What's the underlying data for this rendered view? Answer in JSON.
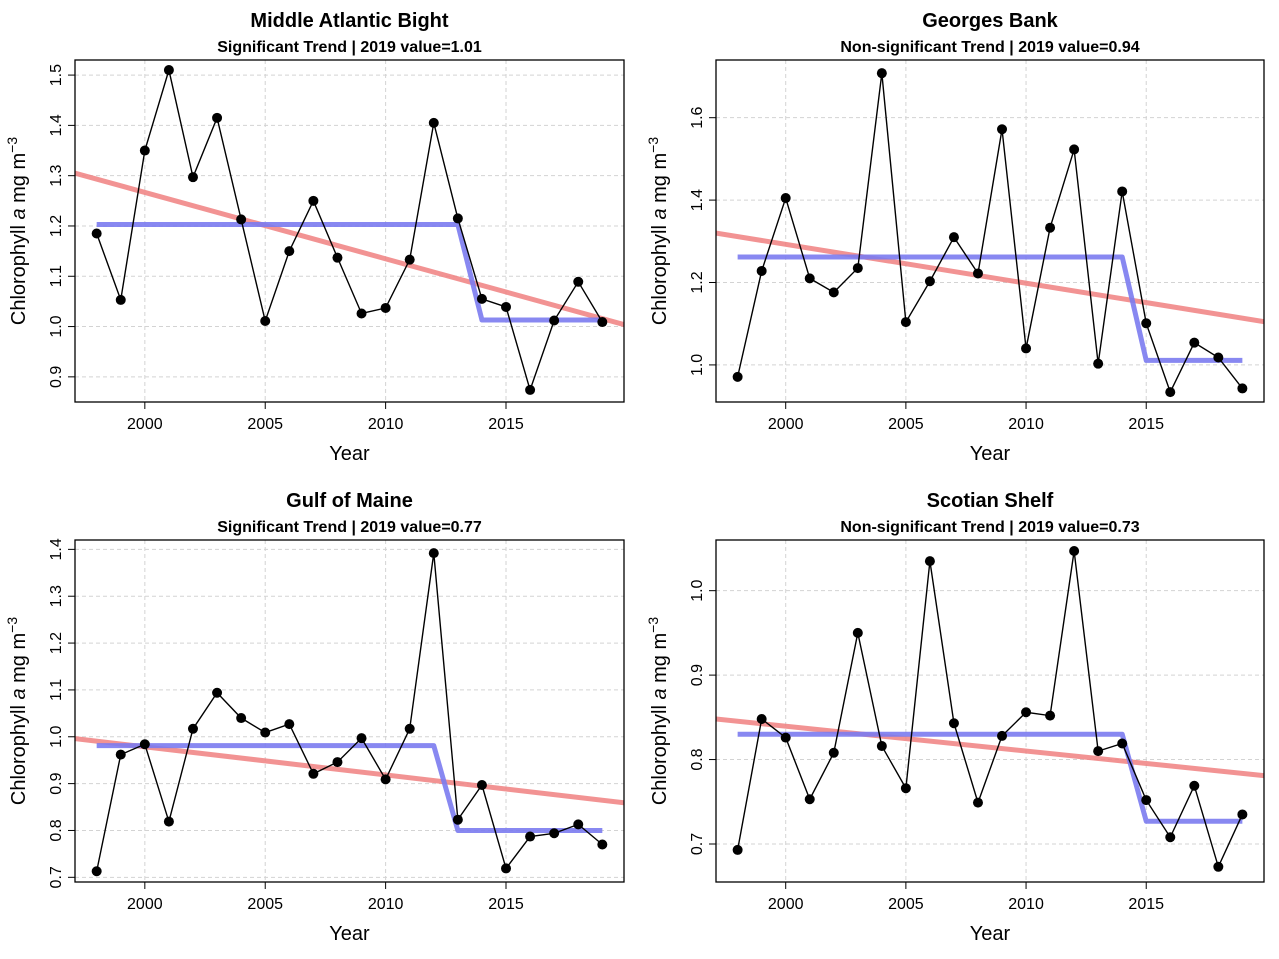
{
  "colors": {
    "series": "#000000",
    "trend": "#F08080",
    "mean_shift": "#7B7BF0",
    "grid": "#D3D3D3"
  },
  "chart_data": [
    {
      "type": "line",
      "title": "Middle Atlantic Bight",
      "subtitle": "Significant Trend | 2019 value=1.01",
      "xlabel": "Year",
      "ylabel": "Chlorophyll a mg m-3",
      "xlim": [
        1997.1,
        2019.9
      ],
      "ylim": [
        0.85,
        1.53
      ],
      "xticks": [
        2000,
        2005,
        2010,
        2015
      ],
      "yticks": [
        0.9,
        1.0,
        1.1,
        1.2,
        1.3,
        1.4,
        1.5
      ],
      "ytick_labels": [
        "0.9",
        "1.0",
        "1.1",
        "1.2",
        "1.3",
        "1.4",
        "1.5"
      ],
      "grid": true,
      "x": [
        1998,
        1999,
        2000,
        2001,
        2002,
        2003,
        2004,
        2005,
        2006,
        2007,
        2008,
        2009,
        2010,
        2011,
        2012,
        2013,
        2014,
        2015,
        2016,
        2017,
        2018,
        2019
      ],
      "values": [
        1.185,
        1.053,
        1.35,
        1.51,
        1.297,
        1.415,
        1.213,
        1.011,
        1.15,
        1.25,
        1.137,
        1.026,
        1.037,
        1.133,
        1.405,
        1.215,
        1.055,
        1.039,
        0.874,
        1.012,
        1.089,
        1.009
      ],
      "trend": {
        "x": [
          1997.1,
          2019.9
        ],
        "y": [
          1.305,
          1.004
        ]
      },
      "mean_shift": {
        "x": [
          1998,
          2013,
          2014,
          2019
        ],
        "y": [
          1.203,
          1.203,
          1.013,
          1.013
        ]
      }
    },
    {
      "type": "line",
      "title": "Georges Bank",
      "subtitle": "Non-significant Trend | 2019 value=0.94",
      "xlabel": "Year",
      "ylabel": "Chlorophyll a mg m-3",
      "xlim": [
        1997.1,
        2019.9
      ],
      "ylim": [
        0.91,
        1.74
      ],
      "xticks": [
        2000,
        2005,
        2010,
        2015
      ],
      "yticks": [
        1.0,
        1.2,
        1.4,
        1.6
      ],
      "ytick_labels": [
        "1.0",
        "1.2",
        "1.4",
        "1.6"
      ],
      "grid": true,
      "x": [
        1998,
        1999,
        2000,
        2001,
        2002,
        2003,
        2004,
        2005,
        2006,
        2007,
        2008,
        2009,
        2010,
        2011,
        2012,
        2013,
        2014,
        2015,
        2016,
        2017,
        2018,
        2019
      ],
      "values": [
        0.971,
        1.228,
        1.405,
        1.21,
        1.176,
        1.235,
        1.708,
        1.104,
        1.203,
        1.31,
        1.222,
        1.572,
        1.04,
        1.333,
        1.523,
        1.003,
        1.421,
        1.101,
        0.934,
        1.054,
        1.018,
        0.943
      ],
      "trend": {
        "x": [
          1997.1,
          2019.9
        ],
        "y": [
          1.32,
          1.105
        ]
      },
      "mean_shift": {
        "x": [
          1998,
          2014,
          2015,
          2019
        ],
        "y": [
          1.262,
          1.262,
          1.011,
          1.011
        ]
      }
    },
    {
      "type": "line",
      "title": "Gulf of Maine",
      "subtitle": "Significant Trend | 2019 value=0.77",
      "xlabel": "Year",
      "ylabel": "Chlorophyll a mg m-3",
      "xlim": [
        1997.1,
        2019.9
      ],
      "ylim": [
        0.69,
        1.42
      ],
      "xticks": [
        2000,
        2005,
        2010,
        2015
      ],
      "yticks": [
        0.7,
        0.8,
        0.9,
        1.0,
        1.1,
        1.2,
        1.3,
        1.4
      ],
      "ytick_labels": [
        "0.7",
        "0.8",
        "0.9",
        "1.0",
        "1.1",
        "1.2",
        "1.3",
        "1.4"
      ],
      "grid": true,
      "x": [
        1998,
        1999,
        2000,
        2001,
        2002,
        2003,
        2004,
        2005,
        2006,
        2007,
        2008,
        2009,
        2010,
        2011,
        2012,
        2013,
        2014,
        2015,
        2016,
        2017,
        2018,
        2019
      ],
      "values": [
        0.713,
        0.962,
        0.984,
        0.819,
        1.017,
        1.094,
        1.04,
        1.009,
        1.027,
        0.921,
        0.946,
        0.997,
        0.909,
        1.017,
        1.392,
        0.823,
        0.897,
        0.719,
        0.787,
        0.794,
        0.813,
        0.77
      ],
      "trend": {
        "x": [
          1997.1,
          2019.9
        ],
        "y": [
          0.996,
          0.859
        ]
      },
      "mean_shift": {
        "x": [
          1998,
          2012,
          2013,
          2019
        ],
        "y": [
          0.981,
          0.981,
          0.8,
          0.8
        ]
      }
    },
    {
      "type": "line",
      "title": "Scotian Shelf",
      "subtitle": "Non-significant Trend | 2019 value=0.73",
      "xlabel": "Year",
      "ylabel": "Chlorophyll a mg m-3",
      "xlim": [
        1997.1,
        2019.9
      ],
      "ylim": [
        0.655,
        1.06
      ],
      "xticks": [
        2000,
        2005,
        2010,
        2015
      ],
      "yticks": [
        0.7,
        0.8,
        0.9,
        1.0
      ],
      "ytick_labels": [
        "0.7",
        "0.8",
        "0.9",
        "1.0"
      ],
      "grid": true,
      "x": [
        1998,
        1999,
        2000,
        2001,
        2002,
        2003,
        2004,
        2005,
        2006,
        2007,
        2008,
        2009,
        2010,
        2011,
        2012,
        2013,
        2014,
        2015,
        2016,
        2017,
        2018,
        2019
      ],
      "values": [
        0.693,
        0.848,
        0.826,
        0.753,
        0.808,
        0.95,
        0.816,
        0.766,
        1.035,
        0.843,
        0.749,
        0.828,
        0.856,
        0.852,
        1.047,
        0.81,
        0.819,
        0.752,
        0.708,
        0.769,
        0.673,
        0.735
      ],
      "trend": {
        "x": [
          1997.1,
          2019.9
        ],
        "y": [
          0.848,
          0.781
        ]
      },
      "mean_shift": {
        "x": [
          1998,
          2014,
          2015,
          2019
        ],
        "y": [
          0.83,
          0.83,
          0.727,
          0.727
        ]
      }
    }
  ]
}
